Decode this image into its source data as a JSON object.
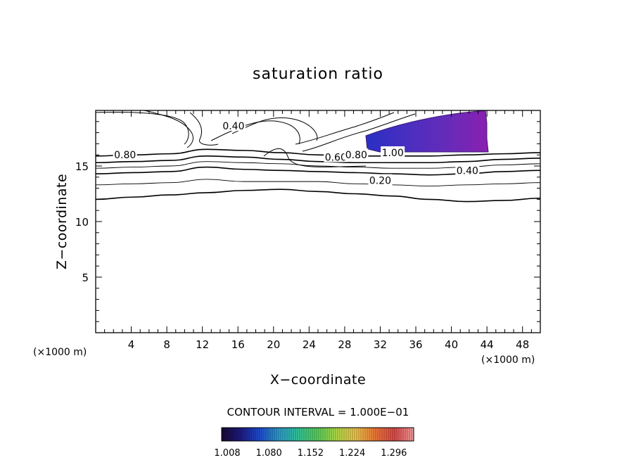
{
  "chart_data": {
    "type": "contour",
    "title": "saturation ratio",
    "xlabel": "X−coordinate",
    "ylabel": "Z−coordinate",
    "x_unit_label": "(×1000 m)",
    "y_unit_label": "(×1000 m)",
    "xlim": [
      0,
      50
    ],
    "ylim": [
      0,
      20
    ],
    "x_ticks": [
      4,
      8,
      12,
      16,
      20,
      24,
      28,
      32,
      36,
      40,
      44,
      48
    ],
    "x_tick_labels": [
      "4",
      "8",
      "12",
      "16",
      "20",
      "24",
      "28",
      "32",
      "36",
      "40",
      "44",
      "48"
    ],
    "y_ticks": [
      5,
      10,
      15
    ],
    "y_tick_labels": [
      "5",
      "10",
      "15"
    ],
    "contour_interval_text": "CONTOUR INTERVAL = 1.000E−01",
    "contour_labels": [
      {
        "text": "0.80",
        "x": 3.3,
        "z": 16.0
      },
      {
        "text": "0.40",
        "x": 15.5,
        "z": 18.6
      },
      {
        "text": "0.60",
        "x": 27.0,
        "z": 15.8
      },
      {
        "text": "0.80",
        "x": 29.3,
        "z": 16.0
      },
      {
        "text": "1.00",
        "x": 33.4,
        "z": 16.2
      },
      {
        "text": "0.40",
        "x": 41.8,
        "z": 14.6
      },
      {
        "text": "0.20",
        "x": 32.0,
        "z": 13.7
      }
    ],
    "contour_levels_z": [
      {
        "level": 0.2,
        "z": [
          12.0,
          12.2,
          12.4,
          12.6,
          12.8,
          12.9,
          12.7,
          12.5,
          12.3,
          12.0,
          11.8,
          11.9,
          12.1
        ]
      },
      {
        "level": 0.3,
        "z": [
          13.3,
          13.4,
          13.5,
          13.8,
          13.6,
          13.6,
          13.6,
          13.4,
          13.3,
          13.2,
          13.3,
          13.4,
          13.5
        ]
      },
      {
        "level": 0.4,
        "z": [
          14.3,
          14.4,
          14.5,
          14.9,
          14.7,
          14.6,
          14.5,
          14.4,
          14.3,
          14.2,
          14.3,
          14.5,
          14.6
        ]
      },
      {
        "level": 0.5,
        "z": [
          14.8,
          14.9,
          15.0,
          15.4,
          15.3,
          15.2,
          15.0,
          14.9,
          14.8,
          14.8,
          14.9,
          15.1,
          15.2
        ]
      },
      {
        "level": 0.6,
        "z": [
          15.3,
          15.4,
          15.5,
          15.9,
          15.8,
          15.6,
          15.4,
          15.3,
          15.3,
          15.3,
          15.4,
          15.6,
          15.7
        ]
      },
      {
        "level": 0.8,
        "z": [
          15.9,
          16.0,
          16.1,
          16.5,
          16.4,
          16.2,
          16.0,
          15.9,
          15.9,
          15.9,
          16.0,
          16.1,
          16.2
        ]
      }
    ],
    "supersaturated_region": {
      "x_range": [
        29.5,
        44.2
      ],
      "z_range": [
        16.2,
        20.0
      ],
      "value_range": [
        1.008,
        1.08
      ]
    },
    "colorbar": {
      "min": 1.008,
      "max": 1.34,
      "tick_labels": [
        "1.008",
        "1.080",
        "1.152",
        "1.224",
        "1.296"
      ],
      "colors": [
        "#1a0a30",
        "#1e1a8c",
        "#1f4fd0",
        "#2b9fcf",
        "#35c79a",
        "#57d25a",
        "#b6dc4a",
        "#f2c64a",
        "#f07a3a",
        "#e24848",
        "#f1a0a0"
      ]
    }
  }
}
